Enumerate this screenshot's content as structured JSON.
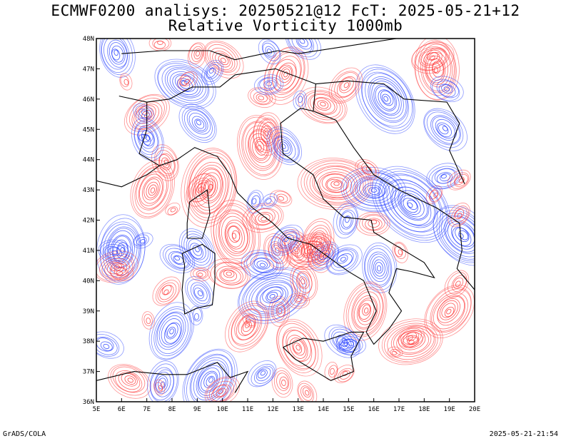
{
  "title_line1": "ECMWF0200 analisys: 20250521@12 FcT: 2025-05-21+12",
  "title_line2": "Relative Vorticity 1000mb",
  "footer_left": "GrADS/COLA",
  "footer_right": "2025-05-21-21:54",
  "colors": {
    "positive_contour": "#ff3c3c",
    "negative_contour": "#2d46ff",
    "coastline": "#000000",
    "frame": "#000000"
  },
  "chart_data": {
    "type": "contour",
    "title": "Relative Vorticity 1000mb",
    "xlim": [
      5,
      20
    ],
    "ylim": [
      36,
      48
    ],
    "x_ticks": [
      "5E",
      "6E",
      "7E",
      "8E",
      "9E",
      "10E",
      "11E",
      "12E",
      "13E",
      "14E",
      "15E",
      "16E",
      "17E",
      "18E",
      "19E",
      "20E"
    ],
    "y_ticks": [
      "36N",
      "37N",
      "38N",
      "39N",
      "40N",
      "41N",
      "42N",
      "43N",
      "44N",
      "45N",
      "46N",
      "47N",
      "48N"
    ],
    "series": [
      {
        "name": "positive",
        "color": "#ff3c3c"
      },
      {
        "name": "negative",
        "color": "#2d46ff"
      }
    ]
  }
}
